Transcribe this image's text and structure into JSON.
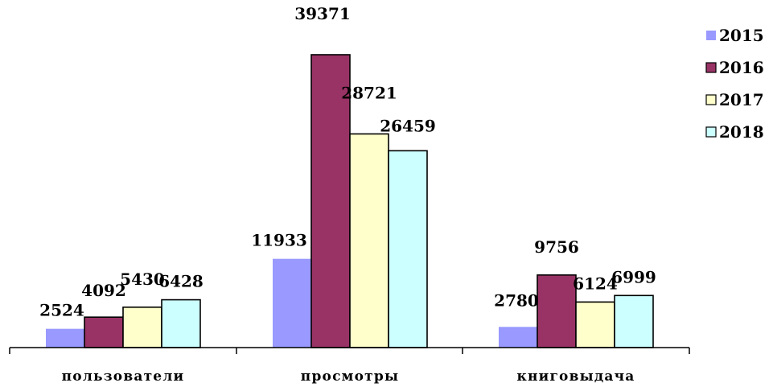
{
  "chart_data": {
    "type": "bar",
    "categories": [
      "пользователи",
      "просмотры",
      "книговыдача"
    ],
    "series": [
      {
        "name": "2015",
        "color": "#9999ff",
        "values": [
          2524,
          11933,
          2780
        ]
      },
      {
        "name": "2016",
        "color": "#993366",
        "values": [
          4092,
          39371,
          9756
        ]
      },
      {
        "name": "2017",
        "color": "#ffffcc",
        "values": [
          5430,
          28721,
          6124
        ]
      },
      {
        "name": "2018",
        "color": "#ccffff",
        "values": [
          6428,
          26459,
          6999
        ]
      }
    ],
    "legend_position": "right",
    "grid": false,
    "title": "",
    "xlabel": "",
    "ylabel": ""
  }
}
